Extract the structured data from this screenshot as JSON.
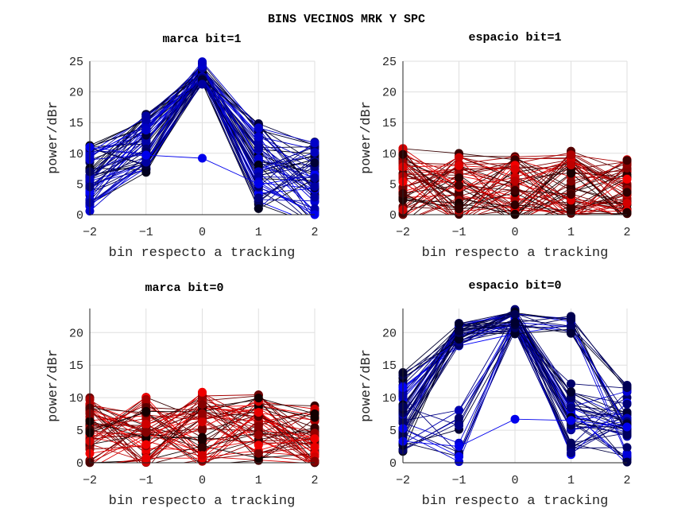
{
  "chart_data": {
    "title": "BINS VECINOS MRK Y SPC",
    "type": "line",
    "panels": [
      {
        "id": "marca-bit1",
        "title": "marca bit=1",
        "xlabel": "bin respecto a tracking",
        "ylabel": "power/dBr",
        "xlim": [
          -2,
          2
        ],
        "ylim": [
          0,
          25
        ],
        "xticks": [
          "-2",
          "-1",
          "0",
          "1",
          "2"
        ],
        "yticks": [
          "0",
          "5",
          "10",
          "15",
          "20",
          "25"
        ],
        "grid": true,
        "color_family": "blue",
        "x": [
          -2,
          -1,
          0,
          1,
          2
        ],
        "point_ranges": {
          "-2": [
            0.5,
            13.2
          ],
          "-1": [
            6.7,
            16.8
          ],
          "0": [
            21.2,
            25.2
          ],
          "1": [
            0.7,
            15.3
          ],
          "2": [
            0,
            14.3
          ]
        },
        "outlier_series": [
          11,
          9.7,
          9.2,
          5,
          0
        ],
        "n_series": 60
      },
      {
        "id": "espacio-bit1",
        "title": "espacio bit=1",
        "xlabel": "bin respecto a tracking",
        "ylabel": "power/dBr",
        "xlim": [
          -2,
          2
        ],
        "ylim": [
          0,
          25
        ],
        "xticks": [
          "-2",
          "-1",
          "0",
          "1",
          "2"
        ],
        "yticks": [
          "0",
          "5",
          "10",
          "15",
          "20",
          "25"
        ],
        "grid": true,
        "color_family": "red",
        "x": [
          -2,
          -1,
          0,
          1,
          2
        ],
        "point_ranges": {
          "-2": [
            0,
            12.3
          ],
          "-1": [
            0,
            10.8
          ],
          "0": [
            0,
            10.8
          ],
          "1": [
            0,
            11.3
          ],
          "2": [
            0,
            9.8
          ]
        },
        "n_series": 60
      },
      {
        "id": "marca-bit0",
        "title": "marca bit=0",
        "xlabel": "bin respecto a tracking",
        "ylabel": "power/dBr",
        "xlim": [
          -2,
          2
        ],
        "ylim": [
          0,
          23.7
        ],
        "xticks": [
          "-2",
          "-1",
          "0",
          "1",
          "2"
        ],
        "yticks": [
          "0",
          "5",
          "10",
          "15",
          "20"
        ],
        "grid": true,
        "color_family": "red",
        "x": [
          -2,
          -1,
          0,
          1,
          2
        ],
        "point_ranges": {
          "-2": [
            0,
            11.2
          ],
          "-1": [
            0,
            11.2
          ],
          "0": [
            0.8,
            11.8
          ],
          "1": [
            1.6,
            11.8
          ],
          "2": [
            0.5,
            9.8
          ]
        },
        "n_series": 55
      },
      {
        "id": "espacio-bit0",
        "title": "espacio bit=0",
        "xlabel": "bin respecto a tracking",
        "ylabel": "power/dBr",
        "xlim": [
          -2,
          2
        ],
        "ylim": [
          0,
          23.7
        ],
        "xticks": [
          "-2",
          "-1",
          "0",
          "1",
          "2"
        ],
        "yticks": [
          "0",
          "5",
          "10",
          "15",
          "20"
        ],
        "grid": true,
        "color_family": "blue",
        "x": [
          -2,
          -1,
          0,
          1,
          2
        ],
        "point_ranges": {
          "-2": [
            1.7,
            14.3
          ],
          "-1": [
            0,
            21.8
          ],
          "0": [
            6.7,
            23.6
          ],
          "1": [
            1.2,
            22.8
          ],
          "2": [
            0,
            12.3
          ]
        },
        "outlier_series": [
          3.3,
          2.5,
          6.7,
          6.5,
          5.5
        ],
        "n_series": 55
      }
    ]
  }
}
